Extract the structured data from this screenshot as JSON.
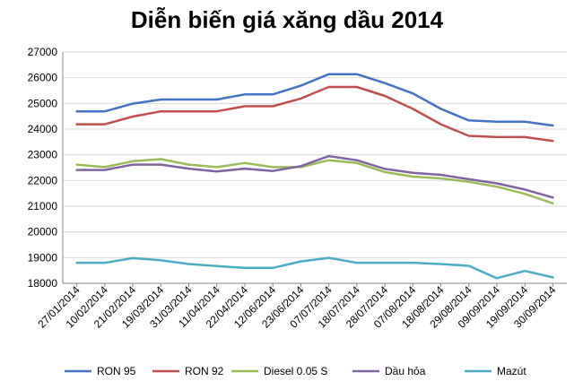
{
  "chart_data": {
    "type": "line",
    "title": "Diễn biến giá xăng dầu 2014",
    "xlabel": "",
    "ylabel": "",
    "ylim": [
      18000,
      27000
    ],
    "yticks": [
      18000,
      19000,
      20000,
      21000,
      22000,
      23000,
      24000,
      25000,
      26000,
      27000
    ],
    "grid": true,
    "legend_position": "bottom",
    "categories": [
      "27/01/2014",
      "10/02/2014",
      "21/02/2014",
      "19/03/2014",
      "31/03/2014",
      "11/04/2014",
      "22/04/2014",
      "12/06/2014",
      "23/06/2014",
      "07/07/2014",
      "18/07/2014",
      "28/07/2014",
      "07/08/2014",
      "18/08/2014",
      "29/08/2014",
      "09/09/2014",
      "19/09/2014",
      "30/09/2014"
    ],
    "series": [
      {
        "name": "RON 95",
        "color": "#4472C4",
        "values": [
          24690,
          24690,
          24990,
          25150,
          25150,
          25150,
          25350,
          25350,
          25690,
          26140,
          26140,
          25790,
          25390,
          24790,
          24340,
          24290,
          24290,
          24140
        ]
      },
      {
        "name": "RON 92",
        "color": "#C0504D",
        "values": [
          24190,
          24190,
          24490,
          24690,
          24690,
          24690,
          24890,
          24890,
          25190,
          25640,
          25640,
          25290,
          24790,
          24190,
          23740,
          23690,
          23690,
          23540
        ]
      },
      {
        "name": "Diesel 0.05 S",
        "color": "#9BBB59",
        "values": [
          22620,
          22520,
          22750,
          22830,
          22620,
          22520,
          22680,
          22520,
          22520,
          22790,
          22680,
          22330,
          22150,
          22080,
          21950,
          21760,
          21480,
          21110
        ]
      },
      {
        "name": "Dầu hỏa",
        "color": "#8064A2",
        "values": [
          22410,
          22410,
          22620,
          22620,
          22460,
          22350,
          22460,
          22370,
          22560,
          22950,
          22790,
          22450,
          22300,
          22220,
          22050,
          21890,
          21650,
          21340
        ]
      },
      {
        "name": "Mazút",
        "color": "#4BACC6",
        "values": [
          18800,
          18800,
          18980,
          18900,
          18750,
          18670,
          18600,
          18600,
          18850,
          18990,
          18800,
          18800,
          18800,
          18750,
          18680,
          18200,
          18480,
          18230
        ]
      }
    ]
  }
}
